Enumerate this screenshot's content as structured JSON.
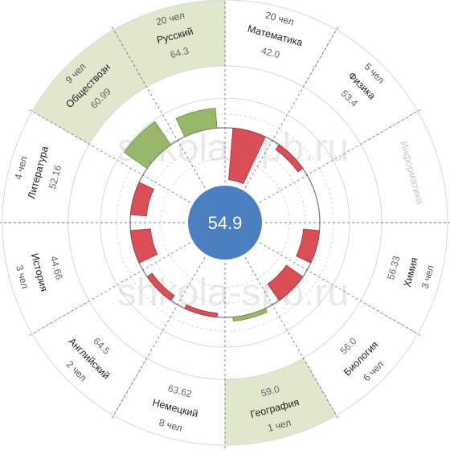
{
  "watermark": "shkola-spb.ru",
  "chart_data": {
    "type": "radial",
    "center_value": "54.9",
    "colors": {
      "center": "#4a7fc0",
      "highlight": "#dfe8cc",
      "above": "#97b86a",
      "below": "#d94f55",
      "disabled_text": "#c8c8c8"
    },
    "reference_value": 54.9,
    "sectors": [
      {
        "subject": "Математика",
        "count": "20 чел",
        "score": "42.0",
        "value": 42.0,
        "highlight": false,
        "disabled": false
      },
      {
        "subject": "Физика",
        "count": "5 чел",
        "score": "53.4",
        "value": 53.4,
        "highlight": false,
        "disabled": false
      },
      {
        "subject": "Информатика",
        "count": "",
        "score": "",
        "value": null,
        "highlight": false,
        "disabled": true
      },
      {
        "subject": "Химия",
        "count": "3 чел",
        "score": "56.33",
        "value": 56.33,
        "highlight": false,
        "disabled": false
      },
      {
        "subject": "Биология",
        "count": "6 чел",
        "score": "56.0",
        "value": 56.0,
        "highlight": false,
        "disabled": false
      },
      {
        "subject": "География",
        "count": "1 чел",
        "score": "59.0",
        "value": 59.0,
        "highlight": true,
        "disabled": false
      },
      {
        "subject": "Немецкий",
        "count": "8 чел",
        "score": "63.62",
        "value": 63.62,
        "highlight": false,
        "disabled": false
      },
      {
        "subject": "Английский",
        "count": "2 чел",
        "score": "64.5",
        "value": 64.5,
        "highlight": false,
        "disabled": false
      },
      {
        "subject": "История",
        "count": "3 чел",
        "score": "44.66",
        "value": 44.66,
        "highlight": false,
        "disabled": false
      },
      {
        "subject": "Литература",
        "count": "4 чел",
        "score": "52.16",
        "value": 52.16,
        "highlight": false,
        "disabled": false
      },
      {
        "subject": "Обществозн",
        "count": "9 чел",
        "score": "60.99",
        "value": 60.99,
        "highlight": true,
        "disabled": false
      },
      {
        "subject": "Русский",
        "count": "20 чел",
        "score": "64.3",
        "value": 64.3,
        "highlight": true,
        "disabled": false
      }
    ],
    "bar_deviation": [
      {
        "subject": "Математика",
        "delta": -12.9,
        "status": "below"
      },
      {
        "subject": "Физика",
        "delta": -1.5,
        "status": "below"
      },
      {
        "subject": "Информатика",
        "delta": 0,
        "status": "none"
      },
      {
        "subject": "Химия",
        "delta": -4.0,
        "status": "below"
      },
      {
        "subject": "Биология",
        "delta": -5.0,
        "status": "below"
      },
      {
        "subject": "География",
        "delta": 1.0,
        "status": "above"
      },
      {
        "subject": "Немецкий",
        "delta": -1.0,
        "status": "below"
      },
      {
        "subject": "Английский",
        "delta": -1.5,
        "status": "below"
      },
      {
        "subject": "История",
        "delta": -5.0,
        "status": "below"
      },
      {
        "subject": "Литература",
        "delta": -4.0,
        "status": "below"
      },
      {
        "subject": "Обществозн",
        "delta": 7.0,
        "status": "above"
      },
      {
        "subject": "Русский",
        "delta": 5.0,
        "status": "above"
      }
    ]
  }
}
